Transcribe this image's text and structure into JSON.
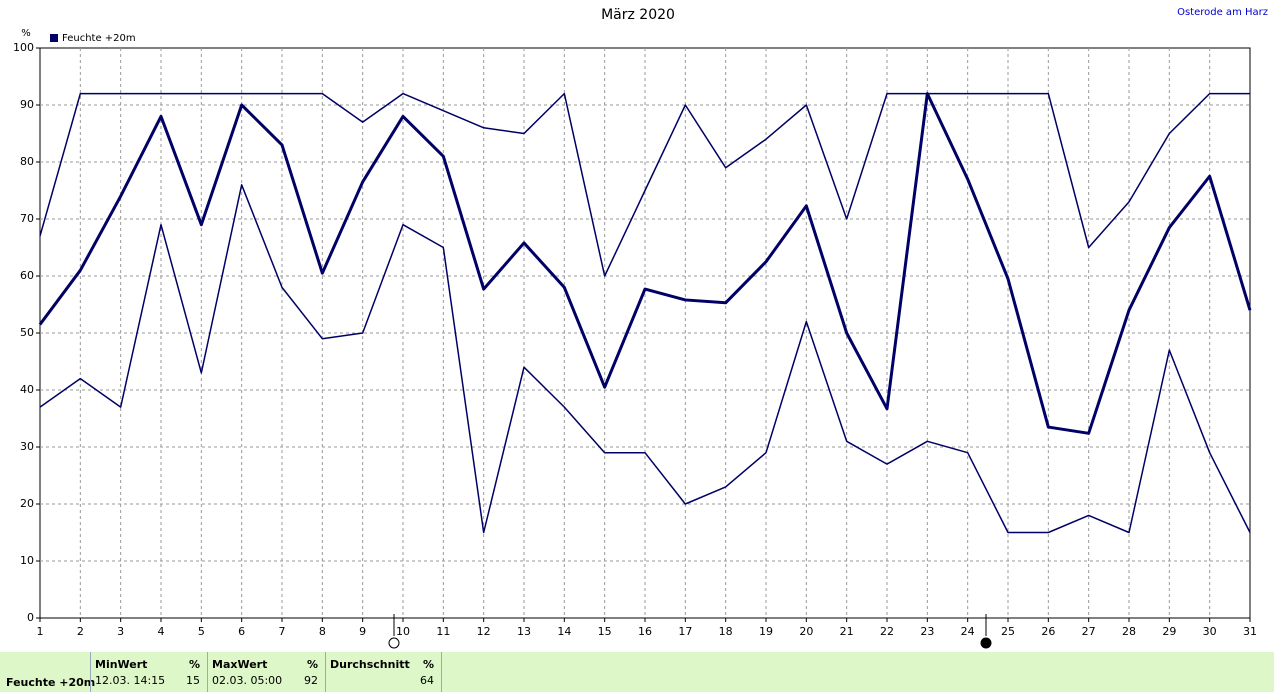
{
  "chart_data": {
    "type": "line",
    "title": "März 2020",
    "location": "Osterode am Harz",
    "y_unit": "%",
    "x": [
      1,
      2,
      3,
      4,
      5,
      6,
      7,
      8,
      9,
      10,
      11,
      12,
      13,
      14,
      15,
      16,
      17,
      18,
      19,
      20,
      21,
      22,
      23,
      24,
      25,
      26,
      27,
      28,
      29,
      30,
      31
    ],
    "xlim": [
      1,
      31
    ],
    "xticks": [
      1,
      2,
      3,
      4,
      5,
      6,
      7,
      8,
      9,
      10,
      11,
      12,
      13,
      14,
      15,
      16,
      17,
      18,
      19,
      20,
      21,
      22,
      23,
      24,
      25,
      26,
      27,
      28,
      29,
      30,
      31
    ],
    "ylim": [
      0,
      100
    ],
    "yticks": [
      0,
      10,
      20,
      30,
      40,
      50,
      60,
      70,
      80,
      90,
      100
    ],
    "grid": true,
    "series": [
      {
        "name": "Feuchte +20m",
        "color": "#000066",
        "width": 3,
        "values": [
          51.5,
          61,
          74,
          88,
          69,
          90,
          83,
          60.5,
          76.5,
          88,
          81,
          57.7,
          65.8,
          58,
          40.5,
          57.7,
          55.8,
          55.3,
          62.5,
          72.3,
          50,
          36.7,
          92,
          77,
          59.5,
          33.5,
          32.4,
          54,
          68.5,
          77.5,
          54
        ]
      },
      {
        "color": "#000066",
        "width": 1.5,
        "values": [
          67,
          92,
          92,
          92,
          92,
          92,
          92,
          92,
          87,
          92,
          89,
          86,
          85,
          92,
          60,
          75,
          90,
          79,
          84,
          90,
          70,
          92,
          92,
          92,
          92,
          92,
          65,
          73,
          85,
          92,
          92
        ]
      },
      {
        "color": "#000066",
        "width": 1.5,
        "values": [
          37,
          42,
          37,
          69,
          43,
          76,
          58,
          49,
          50,
          69,
          65,
          15,
          44,
          37,
          29,
          29,
          20,
          23,
          29,
          52,
          31,
          27,
          31,
          29,
          15,
          15,
          18,
          15,
          47,
          29,
          15
        ]
      }
    ]
  },
  "footer": {
    "label": "Feuchte +20m",
    "stats": [
      {
        "title": "MinWert",
        "unit": "%",
        "time": "12.03.  14:15",
        "value": 15
      },
      {
        "title": "MaxWert",
        "unit": "%",
        "time": "02.03.  05:00",
        "value": 92
      },
      {
        "title": "Durchschnitt",
        "unit": "%",
        "value": 64
      }
    ]
  }
}
